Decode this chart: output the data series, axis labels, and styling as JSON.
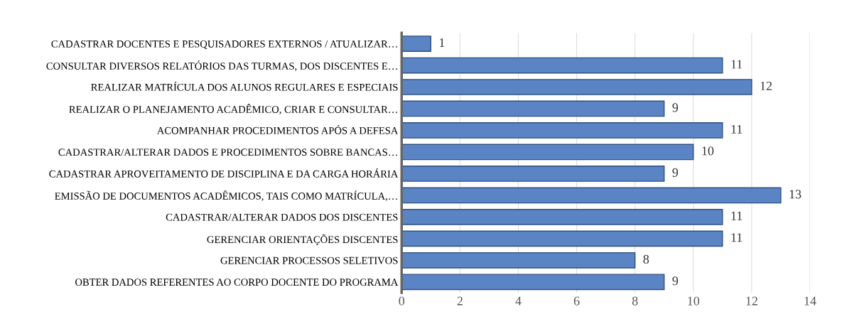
{
  "chart_data": {
    "type": "bar",
    "orientation": "horizontal",
    "categories": [
      "CADASTRAR DOCENTES E PESQUISADORES EXTERNOS / ATUALIZAR…",
      "CONSULTAR DIVERSOS RELATÓRIOS DAS TURMAS, DOS DISCENTES E…",
      "REALIZAR MATRÍCULA DOS ALUNOS REGULARES E ESPECIAIS",
      "REALIZAR O PLANEJAMENTO ACADÊMICO, CRIAR E CONSULTAR…",
      "ACOMPANHAR PROCEDIMENTOS APÓS A DEFESA",
      "CADASTRAR/ALTERAR DADOS E PROCEDIMENTOS SOBRE BANCAS…",
      "CADASTRAR APROVEITAMENTO DE DISCIPLINA E DA CARGA HORÁRIA",
      "EMISSÃO DE DOCUMENTOS ACADÊMICOS, TAIS COMO MATRÍCULA,…",
      "CADASTRAR/ALTERAR DADOS DOS DISCENTES",
      "GERENCIAR ORIENTAÇÕES DISCENTES",
      "GERENCIAR PROCESSOS SELETIVOS",
      "OBTER DADOS REFERENTES AO CORPO DOCENTE DO PROGRAMA"
    ],
    "values": [
      1,
      11,
      12,
      9,
      11,
      10,
      9,
      13,
      11,
      11,
      8,
      9
    ],
    "color": "#5b84c4",
    "xlim": [
      0,
      14
    ],
    "xticks": [
      0,
      2,
      4,
      6,
      8,
      10,
      12,
      14
    ],
    "grid": "x",
    "data_labels": true
  }
}
